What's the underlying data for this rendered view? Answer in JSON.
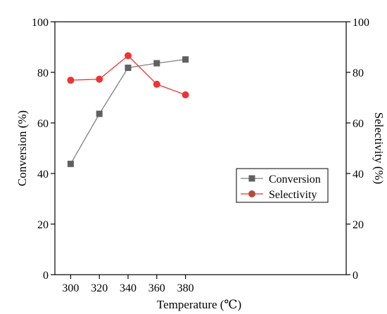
{
  "chart_data": {
    "type": "line",
    "x": [
      300,
      320,
      340,
      360,
      380
    ],
    "xlim": [
      289,
      492
    ],
    "xticks": [
      "300",
      "320",
      "340",
      "360",
      "380"
    ],
    "ylim": [
      0,
      100
    ],
    "yticks_left": [
      "0",
      "20",
      "40",
      "60",
      "80",
      "100"
    ],
    "yticks_right": [
      "0",
      "20",
      "40",
      "60",
      "80",
      "100"
    ],
    "xlabel": "Temperature (℃)",
    "ylabel_left": "Conversion (%)",
    "ylabel_right": "Selectivity (%)",
    "legend_position": "center-right",
    "grid": false,
    "series": [
      {
        "name": "Conversion",
        "axis": "left",
        "marker": "square",
        "color": "#606060",
        "line_color": "#808080",
        "values": [
          43.8,
          63.6,
          81.8,
          83.6,
          85.1
        ]
      },
      {
        "name": "Selectivity",
        "axis": "right",
        "marker": "circle",
        "color": "#ee3333",
        "line_color": "#ee3333",
        "values": [
          76.9,
          77.3,
          86.6,
          75.3,
          71.1
        ]
      }
    ]
  }
}
